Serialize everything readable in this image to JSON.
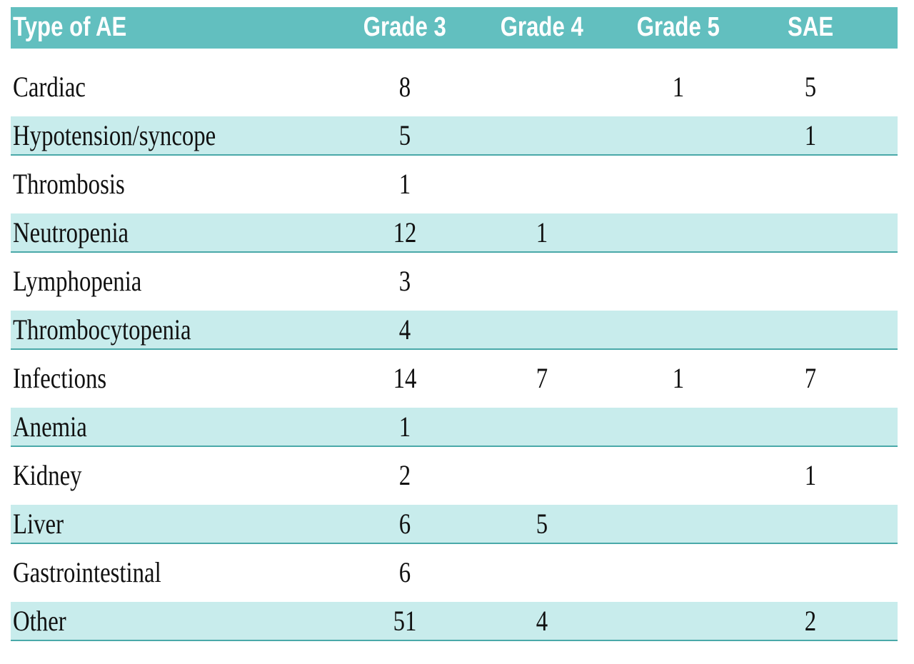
{
  "table": {
    "header": [
      "Type of AE",
      "Grade 3",
      "Grade 4",
      "Grade 5",
      "SAE"
    ],
    "rows": [
      [
        "Cardiac",
        8,
        null,
        1,
        5
      ],
      [
        "Hypotension/syncope",
        5,
        null,
        null,
        1
      ],
      [
        "Thrombosis",
        1,
        null,
        null,
        null
      ],
      [
        "Neutropenia",
        12,
        1,
        null,
        null
      ],
      [
        "Lymphopenia",
        3,
        null,
        null,
        null
      ],
      [
        "Thrombocytopenia",
        4,
        null,
        null,
        null
      ],
      [
        "Infections",
        14,
        7,
        1,
        7
      ],
      [
        "Anemia",
        1,
        null,
        null,
        null
      ],
      [
        "Kidney",
        2,
        null,
        null,
        1
      ],
      [
        "Liver",
        6,
        5,
        null,
        null
      ],
      [
        "Gastrointestinal",
        6,
        null,
        null,
        null
      ],
      [
        "Other",
        51,
        4,
        null,
        2
      ]
    ]
  }
}
